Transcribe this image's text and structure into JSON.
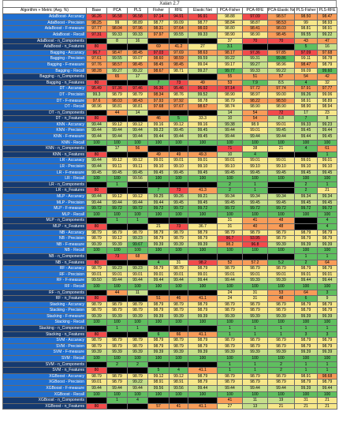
{
  "title": "Xalan 2.7",
  "columns": [
    "Algorithm + Metric (Avg. %)",
    "Base",
    "PCA",
    "PLS",
    "Fisher",
    "RFE",
    "Elastic Net",
    "PCA-Fisher",
    "PCA-RFE",
    "PCA-Elastic Net",
    "PLS-Fisher",
    "PLS-RFE"
  ],
  "colors": {
    "label_blue": "#1f6fd1",
    "label_dark": "#153a70",
    "red": "#f24b4b",
    "orange": "#f89c58",
    "yellow": "#f7e78a",
    "lightgreen": "#c6df8a",
    "green": "#5fbf5f",
    "black": "#000000"
  },
  "rows": [
    {
      "label": "AdaBoost- Accuracy",
      "cells": [
        "96.26",
        "96.58",
        "96.58",
        "97.14",
        "94.91",
        "96.91",
        "98.88",
        "97.09",
        "98.57",
        "98.50",
        "98.47"
      ]
    },
    {
      "label": "AdaBoost - Precision",
      "cells": [
        "98.25",
        "99",
        "98.89",
        "98.77",
        "99.09",
        "98.77",
        "98.84",
        "98.87",
        "98.53",
        "99",
        "98.93"
      ]
    },
    {
      "label": "AdaBoost - F-measure",
      "cells": [
        "97.77",
        "98.04",
        "97.96",
        "98.31",
        "97.64",
        "98.03",
        "98.80",
        "98.41",
        "98.03",
        "98.81",
        "98.91"
      ]
    },
    {
      "label": "AdaBoost - Recall",
      "cells": [
        "97.31",
        "99.33",
        "99.33",
        "97.97",
        "99.55",
        "99.33",
        "98.90",
        "98.90",
        "98.45",
        "99.55",
        "99.22"
      ]
    },
    {
      "label": "AdaBoost - n_Components",
      "cells": [
        "",
        "8",
        "16",
        "",
        "",
        "",
        "37",
        "70",
        "70",
        "43",
        "47"
      ]
    },
    {
      "label": "AdaBoost - n_Features",
      "cells": [
        "80",
        "",
        "",
        "69",
        "41.2",
        "27",
        "3.1",
        "",
        "",
        "5",
        "16"
      ]
    },
    {
      "label": "Bagging - Accuracy",
      "cells": [
        "96.7",
        "98.47",
        "98.45",
        "97.03",
        "97.69",
        "98.63",
        "98.17",
        "97.36",
        "97.85",
        "97.09",
        "97.68"
      ]
    },
    {
      "label": "Bagging - Precision",
      "cells": [
        "97.61",
        "99.55",
        "99.07",
        "98.60",
        "98.59",
        "99.59",
        "99.22",
        "99.31",
        "99.86",
        "99.11",
        "98.78"
      ]
    },
    {
      "label": "Bagging - F-measure",
      "cells": [
        "97.76",
        "98.57",
        "98.45",
        "98.45",
        "98.45",
        "99.04",
        "99.17",
        "99.27",
        "98.96",
        "98.47",
        "98.79"
      ]
    },
    {
      "label": "Bagging - Recall",
      "cells": [
        "98.28",
        "99.27",
        "99.22",
        "98.67",
        "98.71",
        "99.27",
        "99.77",
        "99.33",
        "99.22",
        "99.09",
        "99.60"
      ]
    },
    {
      "label": "Bagging - n_Components",
      "cells": [
        "",
        "65",
        "17",
        "",
        "",
        "",
        "55",
        "51",
        "57",
        "54",
        "42"
      ]
    },
    {
      "label": "Bagging - n_Features",
      "cells": [
        "80",
        "",
        "",
        "7",
        "73",
        "49",
        "53",
        "7.9",
        "8.5",
        "4",
        "32"
      ]
    },
    {
      "label": "DT - Accuracy",
      "cells": [
        "95.49",
        "97.36",
        "97.46",
        "96.36",
        "95.46",
        "96.92",
        "97.14",
        "97.72",
        "97.74",
        "97.91",
        "97.77"
      ]
    },
    {
      "label": "DT - Precision",
      "cells": [
        "99.3",
        "98.79",
        "98.79",
        "98.34",
        "98.76",
        "99.52",
        "98.90",
        "98.97",
        "99.00",
        "99.26",
        "99.06"
      ]
    },
    {
      "label": "DT - F-measure",
      "cells": [
        "97.6",
        "98.03",
        "98.43",
        "97.93",
        "97.92",
        "98.78",
        "98.79",
        "98.22",
        "98.50",
        "98.91",
        "98.89"
      ]
    },
    {
      "label": "DT - Recall",
      "cells": [
        "98.96",
        "98.81",
        "98.81",
        "97.68",
        "97.67",
        "98.67",
        "98.74",
        "98.90",
        "98.90",
        "98.90",
        "98.94"
      ]
    },
    {
      "label": "DT - n_Components",
      "cells": [
        "",
        "44",
        "14",
        "",
        "",
        "",
        "14",
        "54",
        "72",
        "17",
        "23"
      ]
    },
    {
      "label": "DT - n_Features",
      "cells": [
        "80",
        "",
        "",
        "46",
        "5",
        "33.3",
        "10",
        "54",
        "8.8",
        "7",
        "8"
      ]
    },
    {
      "label": "KNN - Accuracy",
      "cells": [
        "99.44",
        "99.12",
        "99.12",
        "99.16",
        "99.12",
        "99.16",
        "99.38",
        "98.9",
        "99.01",
        "99.33",
        "99.23"
      ]
    },
    {
      "label": "KNN - Precision",
      "cells": [
        "99.44",
        "99.44",
        "99.44",
        "99.23",
        "99.45",
        "99.45",
        "99.44",
        "99.01",
        "99.45",
        "99.45",
        "99.44"
      ]
    },
    {
      "label": "KNN - F-measure",
      "cells": [
        "99.44",
        "99.44",
        "99.44",
        "99.44",
        "99.44",
        "99.45",
        "99.44",
        "99.44",
        "99.44",
        "99.44",
        "99.45"
      ]
    },
    {
      "label": "KNN - Recall",
      "cells": [
        "100",
        "100",
        "100",
        "100",
        "100",
        "100",
        "100",
        "100",
        "100",
        "100",
        "100"
      ]
    },
    {
      "label": "KNN - n_Components",
      "cells": [
        "",
        "17",
        "56",
        "",
        "",
        "",
        "71",
        "38",
        "21",
        "4",
        "61"
      ]
    },
    {
      "label": "KNN - n_Features",
      "cells": [
        "80",
        "",
        "",
        "49",
        "49",
        "49.3",
        "10",
        "4",
        "",
        "",
        "1"
      ]
    },
    {
      "label": "LR - Accuracy",
      "cells": [
        "99.44",
        "99.12",
        "99.12",
        "99.01",
        "99.01",
        "99.01",
        "99.01",
        "99.01",
        "99.01",
        "99.01",
        "99.01"
      ]
    },
    {
      "label": "LR - Precision",
      "cells": [
        "99.44",
        "99.11",
        "99.11",
        "99.10",
        "99.10",
        "99.10",
        "99.10",
        "99.10",
        "99.10",
        "99.10",
        "99.10"
      ]
    },
    {
      "label": "LR - F-measure",
      "cells": [
        "99.45",
        "99.45",
        "99.45",
        "99.45",
        "99.45",
        "99.45",
        "99.45",
        "99.45",
        "99.45",
        "99.45",
        "99.45"
      ]
    },
    {
      "label": "LR - Recall",
      "cells": [
        "100",
        "100",
        "99.56",
        "100",
        "100",
        "100",
        "100",
        "100",
        "100",
        "100",
        "100"
      ]
    },
    {
      "label": "LR - n_Components",
      "cells": [
        "",
        "1",
        "",
        "",
        "",
        "",
        "2",
        "1",
        "",
        "2",
        "1"
      ]
    },
    {
      "label": "LR - n_Features",
      "cells": [
        "80",
        "",
        "",
        "7",
        "73",
        "41.3",
        "2",
        "1",
        "",
        "2",
        "21"
      ]
    },
    {
      "label": "MLP - Accuracy",
      "cells": [
        "99.44",
        "99.12",
        "99.12",
        "99.25",
        "99.26",
        "99.21",
        "99.34",
        "99.34",
        "99.34",
        "99.34",
        "99.34"
      ]
    },
    {
      "label": "MLP - Precision",
      "cells": [
        "99.44",
        "99.44",
        "99.44",
        "99.44",
        "99.45",
        "99.45",
        "99.45",
        "99.45",
        "99.45",
        "99.45",
        "99.45"
      ]
    },
    {
      "label": "MLP - F-measure",
      "cells": [
        "99.72",
        "99.72",
        "99.72",
        "99.72",
        "99.72",
        "99.72",
        "99.72",
        "99.72",
        "99.72",
        "99.72",
        "99.72"
      ]
    },
    {
      "label": "MLP - Recall",
      "cells": [
        "100",
        "100",
        "100",
        "100",
        "100",
        "100",
        "100",
        "100",
        "100",
        "100",
        "100"
      ]
    },
    {
      "label": "MLP - n_Components",
      "cells": [
        "",
        "1",
        "1",
        "",
        "",
        "",
        "31",
        "41",
        "48",
        "",
        "4"
      ]
    },
    {
      "label": "MLP - n_Features",
      "cells": [
        "80",
        "",
        "",
        "21",
        "73",
        "36.7",
        "31",
        "40",
        "48",
        "",
        "4"
      ]
    },
    {
      "label": "NB - Accuracy",
      "cells": [
        "98.79",
        "98.79",
        "98.79",
        "98.79",
        "98.79",
        "98.79",
        "98.79",
        "98.79",
        "98.79",
        "98.79",
        "98.79"
      ]
    },
    {
      "label": "NB - Precision",
      "cells": [
        "98.79",
        "99.12",
        "99.23",
        "98.79",
        "98.79",
        "98.79",
        "96.7",
        "93.95",
        "98.79",
        "98.79",
        "98.79"
      ]
    },
    {
      "label": "NB - F-measure",
      "cells": [
        "99.39",
        "99.39",
        "99.67",
        "99.39",
        "99.39",
        "99.39",
        "98.2",
        "96.8",
        "99.39",
        "99.39",
        "99.39"
      ]
    },
    {
      "label": "NB - Recall",
      "cells": [
        "100",
        "100",
        "100",
        "100",
        "100",
        "100",
        "100",
        "100",
        "100",
        "100",
        "100"
      ]
    },
    {
      "label": "NB - n_Components",
      "cells": [
        "",
        "73",
        "68",
        "",
        "",
        "",
        "",
        "",
        "",
        "1",
        "1"
      ]
    },
    {
      "label": "NB - n_Features",
      "cells": [
        "80",
        "",
        "",
        "4",
        "31",
        "98.2",
        "52",
        "57.2",
        "5.2",
        "2",
        "64"
      ]
    },
    {
      "label": "RF - Accuracy",
      "cells": [
        "98.79",
        "99.23",
        "99.23",
        "98.79",
        "98.79",
        "98.79",
        "98.79",
        "98.79",
        "98.79",
        "98.79",
        "98.79"
      ]
    },
    {
      "label": "RF - Precision",
      "cells": [
        "99.01",
        "99.01",
        "99.01",
        "99.01",
        "99.01",
        "99.01",
        "99.01",
        "99.01",
        "99.01",
        "99.01",
        "99.01"
      ]
    },
    {
      "label": "RF - F-measure",
      "cells": [
        "99.50",
        "99.44",
        "99.44",
        "99.44",
        "99.44",
        "99.44",
        "99.44",
        "99.39",
        "99.39",
        "99.44",
        "99.44"
      ]
    },
    {
      "label": "RF - Recall",
      "cells": [
        "100",
        "100",
        "100",
        "100",
        "100",
        "100",
        "100",
        "100",
        "100",
        "100",
        "100"
      ]
    },
    {
      "label": "RF - n_Components",
      "cells": [
        "",
        "44",
        "11",
        "",
        "",
        "",
        "24",
        "31",
        "53",
        "64",
        "3"
      ]
    },
    {
      "label": "RF - n_Features",
      "cells": [
        "80",
        "",
        "",
        "51",
        "46",
        "41.1",
        "24",
        "31",
        "48",
        "6",
        "9"
      ]
    },
    {
      "label": "Stacking - Accuracy",
      "cells": [
        "98.79",
        "98.79",
        "98.79",
        "98.79",
        "98.79",
        "98.79",
        "98.79",
        "98.79",
        "98.79",
        "98.79",
        "98.79"
      ]
    },
    {
      "label": "Stacking - Precision",
      "cells": [
        "98.79",
        "98.79",
        "98.79",
        "98.79",
        "98.79",
        "98.79",
        "98.79",
        "98.79",
        "98.79",
        "98.79",
        "98.79"
      ]
    },
    {
      "label": "Stacking - F-measure",
      "cells": [
        "99.39",
        "99.39",
        "99.39",
        "99.39",
        "99.39",
        "99.39",
        "99.39",
        "99.39",
        "99.39",
        "99.39",
        "99.39"
      ]
    },
    {
      "label": "Stacking - Recall",
      "cells": [
        "100",
        "100",
        "100",
        "100",
        "100",
        "100",
        "100",
        "100",
        "100",
        "100",
        "100"
      ]
    },
    {
      "label": "Stacking - n_Components",
      "cells": [
        "",
        "1",
        "1",
        "",
        "",
        "",
        "1",
        "1",
        "1",
        "1",
        "1"
      ]
    },
    {
      "label": "Stacking - n_Features",
      "cells": [
        "80",
        "",
        "",
        "6",
        "66",
        "41.1",
        "1",
        "1",
        "1",
        "3",
        "3"
      ]
    },
    {
      "label": "SVM - Accuracy",
      "cells": [
        "98.79",
        "98.79",
        "98.79",
        "98.79",
        "98.79",
        "98.79",
        "98.79",
        "98.79",
        "98.79",
        "98.79",
        "98.79"
      ]
    },
    {
      "label": "SVM - Precision",
      "cells": [
        "98.79",
        "98.79",
        "98.79",
        "98.79",
        "98.79",
        "98.79",
        "98.79",
        "98.79",
        "98.79",
        "98.79",
        "98.79"
      ]
    },
    {
      "label": "SVM - F-measure",
      "cells": [
        "99.39",
        "99.39",
        "99.39",
        "99.39",
        "99.39",
        "99.39",
        "99.39",
        "99.39",
        "99.39",
        "99.39",
        "99.39"
      ]
    },
    {
      "label": "SVM - Recall",
      "cells": [
        "100",
        "100",
        "100",
        "100",
        "100",
        "100",
        "100",
        "100",
        "100",
        "100",
        "100"
      ]
    },
    {
      "label": "SVM - n_Components",
      "cells": [
        "",
        "2",
        "2",
        "",
        "",
        "",
        "1",
        "1",
        "2",
        "1",
        "1"
      ]
    },
    {
      "label": "SVM - n_Features",
      "cells": [
        "80",
        "",
        "",
        "5",
        "4",
        "41.1",
        "1",
        "1",
        "2",
        "1",
        "1"
      ]
    },
    {
      "label": "XGBoost - Accuracy",
      "cells": [
        "98.79",
        "98.79",
        "98.79",
        "99.12",
        "99.12",
        "98.79",
        "98.79",
        "98.79",
        "98.79",
        "98.91",
        "98.68"
      ]
    },
    {
      "label": "XGBoost - Precision",
      "cells": [
        "99.01",
        "98.79",
        "99.22",
        "98.91",
        "98.91",
        "98.79",
        "98.79",
        "98.79",
        "98.79",
        "98.79",
        "98.79"
      ]
    },
    {
      "label": "XGBoost - F-measure",
      "cells": [
        "99.44",
        "99.44",
        "99.44",
        "99.56",
        "99.56",
        "99.44",
        "99.44",
        "99.44",
        "99.44",
        "99.39",
        "99.44"
      ]
    },
    {
      "label": "XGBoost - Recall",
      "cells": [
        "100",
        "100",
        "100",
        "100",
        "100",
        "100",
        "100",
        "100",
        "100",
        "100",
        "100"
      ]
    },
    {
      "label": "XGBoost - n_Components",
      "cells": [
        "",
        "1",
        "4",
        "",
        "",
        "",
        "41",
        "11",
        "19",
        "31",
        "21"
      ]
    },
    {
      "label": "XGBoost - n_Features",
      "cells": [
        "80",
        "",
        "",
        "57",
        "41",
        "41.1",
        "27",
        "13",
        "21",
        "21",
        "21"
      ]
    }
  ]
}
